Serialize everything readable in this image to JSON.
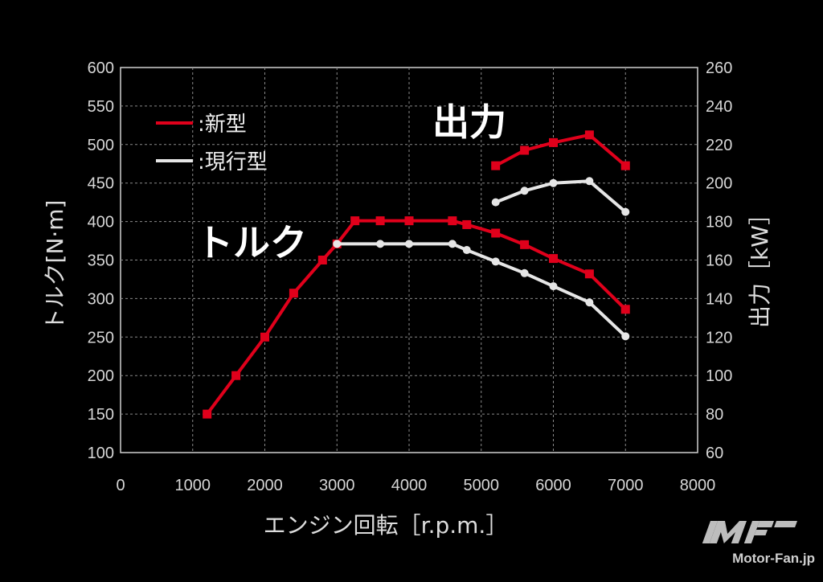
{
  "chart_data": {
    "type": "line",
    "xlabel": "エンジン回転［r.p.m.］",
    "ylabel_left": "トルク[N·m]",
    "ylabel_right": "出力［kW］",
    "xlim": [
      0,
      8000
    ],
    "ylim_left": [
      100,
      600
    ],
    "ylim_right": [
      60,
      260
    ],
    "x_ticks": [
      "0",
      "1000",
      "2000",
      "3000",
      "4000",
      "5000",
      "6000",
      "7000",
      "8000"
    ],
    "y_left_ticks": [
      "100",
      "150",
      "200",
      "250",
      "300",
      "350",
      "400",
      "450",
      "500",
      "550",
      "600"
    ],
    "y_right_ticks": [
      "60",
      "80",
      "100",
      "120",
      "140",
      "160",
      "180",
      "200",
      "220",
      "240",
      "260"
    ],
    "grid": true,
    "legend_position": "top-left",
    "annotations": {
      "power": "出力",
      "torque": "トルク"
    },
    "series": [
      {
        "name": ":新型",
        "axis": "left",
        "color": "#e0001b",
        "x": [
          1200,
          1600,
          2000,
          2400,
          2800,
          3000,
          3250,
          3600,
          4000,
          4600,
          4800,
          5200,
          5600,
          6000,
          6500,
          7000
        ],
        "y": [
          150,
          200,
          250,
          307,
          350,
          371,
          401,
          401,
          401,
          401,
          396,
          385,
          370,
          352,
          332,
          286
        ]
      },
      {
        "name": ":現行型",
        "axis": "left",
        "color": "#e6e6e6",
        "x": [
          3000,
          3600,
          4000,
          4600,
          4800,
          5200,
          5600,
          6000,
          6500,
          7000
        ],
        "y": [
          371,
          371,
          371,
          371,
          363,
          348,
          333,
          316,
          295,
          251
        ]
      },
      {
        "name": ":新型",
        "axis": "right",
        "color": "#e0001b",
        "x": [
          5200,
          5600,
          6000,
          6500,
          7000
        ],
        "y": [
          209,
          217,
          221,
          225,
          209
        ]
      },
      {
        "name": ":現行型",
        "axis": "right",
        "color": "#e6e6e6",
        "x": [
          5200,
          5600,
          6000,
          6500,
          7000
        ],
        "y": [
          190,
          196,
          200,
          201,
          185
        ]
      }
    ]
  },
  "legend": [
    {
      "label": ":新型",
      "color": "#e0001b"
    },
    {
      "label": ":現行型",
      "color": "#e6e6e6"
    }
  ],
  "brand": {
    "text": "Motor-Fan.jp"
  }
}
